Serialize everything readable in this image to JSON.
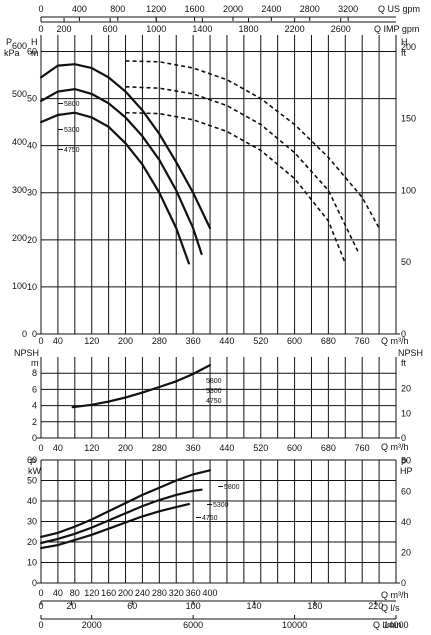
{
  "chart_data": [
    {
      "id": "head",
      "type": "line",
      "left_axis_primary": {
        "title": "P kPa",
        "ticks": [
          0,
          100,
          200,
          300,
          400,
          500,
          600
        ]
      },
      "left_axis_secondary": {
        "title": "H m"
      },
      "right_axis": {
        "title": "H ft",
        "ticks": [
          0,
          50,
          100,
          150,
          200
        ]
      },
      "xlabel": "Q m³/h",
      "xlim": [
        0,
        840
      ],
      "ylim": [
        0,
        63.5
      ],
      "grid": true,
      "series": [
        {
          "name": "5800",
          "style": "solid",
          "x": [
            0,
            40,
            80,
            120,
            160,
            200,
            240,
            280,
            320,
            360,
            400
          ],
          "y": [
            54.5,
            57.0,
            57.3,
            56.5,
            54.5,
            51.5,
            47.5,
            42.5,
            36.5,
            30.0,
            22.5
          ]
        },
        {
          "name": "5300",
          "style": "solid",
          "x": [
            0,
            40,
            80,
            120,
            160,
            200,
            240,
            280,
            320,
            360,
            380
          ],
          "y": [
            49.5,
            51.5,
            52.0,
            51.0,
            49.0,
            46.0,
            42.0,
            37.0,
            30.5,
            22.5,
            17.0
          ]
        },
        {
          "name": "4750",
          "style": "solid",
          "x": [
            0,
            40,
            80,
            120,
            160,
            200,
            240,
            280,
            320,
            350
          ],
          "y": [
            45.0,
            46.5,
            47.0,
            46.0,
            44.0,
            40.5,
            36.0,
            30.0,
            22.5,
            15.0
          ]
        },
        {
          "name": "5800",
          "style": "dashed",
          "x": [
            200,
            280,
            360,
            440,
            520,
            600,
            680,
            760,
            800
          ],
          "y": [
            58.0,
            57.8,
            56.5,
            54.0,
            50.0,
            44.5,
            37.5,
            29.0,
            22.5
          ]
        },
        {
          "name": "5300",
          "style": "dashed",
          "x": [
            200,
            280,
            360,
            440,
            520,
            600,
            680,
            750
          ],
          "y": [
            52.5,
            52.2,
            51.0,
            48.5,
            44.5,
            38.5,
            30.5,
            17.5
          ]
        },
        {
          "name": "4750",
          "style": "dashed",
          "x": [
            200,
            280,
            360,
            440,
            520,
            600,
            680,
            720
          ],
          "y": [
            47.0,
            46.8,
            45.5,
            43.0,
            39.0,
            33.0,
            24.0,
            15.0
          ]
        }
      ]
    },
    {
      "id": "npsh",
      "type": "line",
      "left_axis": {
        "title": "NPSH m",
        "ticks": [
          0,
          2,
          4,
          6,
          8
        ]
      },
      "right_axis": {
        "title": "NPSH ft",
        "ticks": [
          0,
          10,
          20
        ]
      },
      "xlabel": "Q m³/h",
      "xlim": [
        0,
        840
      ],
      "ylim": [
        0,
        10
      ],
      "grid": true,
      "labels": [
        "5800",
        "5300",
        "4750"
      ],
      "series": [
        {
          "name": "5800 / 5300 / 4750",
          "x": [
            75,
            120,
            160,
            200,
            240,
            280,
            320,
            360,
            400
          ],
          "y": [
            3.8,
            4.1,
            4.5,
            5.0,
            5.6,
            6.3,
            7.0,
            7.9,
            9.0
          ]
        }
      ]
    },
    {
      "id": "power",
      "type": "line",
      "left_axis": {
        "title": "P kW",
        "ticks": [
          0,
          10,
          20,
          30,
          40,
          50,
          60
        ]
      },
      "right_axis": {
        "title": "P HP",
        "ticks": [
          0,
          20,
          40,
          60,
          80
        ]
      },
      "xlabel": "Q m³/h",
      "xlim": [
        0,
        840
      ],
      "ylim": [
        0,
        60
      ],
      "grid": true,
      "series": [
        {
          "name": "5800",
          "x": [
            0,
            40,
            80,
            120,
            160,
            200,
            240,
            280,
            320,
            360,
            400
          ],
          "y": [
            22.5,
            24.5,
            27.5,
            31.0,
            35.0,
            39.0,
            43.0,
            46.5,
            50.0,
            53.0,
            55.0
          ]
        },
        {
          "name": "5300",
          "x": [
            0,
            40,
            80,
            120,
            160,
            200,
            240,
            280,
            320,
            360,
            380
          ],
          "y": [
            19.5,
            21.5,
            24.0,
            27.0,
            30.5,
            34.0,
            37.5,
            40.5,
            43.0,
            45.0,
            45.5
          ]
        },
        {
          "name": "4750",
          "x": [
            0,
            40,
            80,
            120,
            160,
            200,
            240,
            280,
            320,
            350
          ],
          "y": [
            17.0,
            18.5,
            21.0,
            23.5,
            26.5,
            29.5,
            32.5,
            35.0,
            37.0,
            38.5
          ]
        }
      ]
    }
  ],
  "x_axes": {
    "m3h": {
      "title": "Q m³/h",
      "ticks": [
        0,
        40,
        120,
        200,
        280,
        360,
        440,
        520,
        600,
        680,
        760
      ]
    },
    "us_gpm": {
      "title": "Q US gpm",
      "ticks": [
        0,
        400,
        800,
        1200,
        1600,
        2000,
        2400,
        2800,
        3200
      ]
    },
    "imp_gpm": {
      "title": "Q IMP gpm",
      "ticks": [
        0,
        200,
        600,
        1000,
        1400,
        1800,
        2200,
        2600
      ]
    },
    "l_s": {
      "title": "Q l/s",
      "ticks": [
        0,
        20,
        60,
        100,
        140,
        180,
        220
      ]
    },
    "l_min": {
      "title": "Q l/min",
      "ticks": [
        0,
        2000,
        6000,
        10000,
        14000
      ]
    },
    "bottom_m3h_ticks": [
      0,
      40,
      80,
      120,
      160,
      200,
      240,
      280,
      320,
      360,
      400
    ]
  },
  "head_m_ticks": [
    0,
    10,
    20,
    30,
    40,
    50,
    60
  ],
  "text": {
    "us_gpm": "Q US gpm",
    "imp_gpm": "Q IMP gpm",
    "p": "P",
    "kpa": "kPa",
    "h": "H",
    "m": "m",
    "ft": "ft",
    "npsh": "NPSH",
    "kw": "kW",
    "hp": "HP",
    "q_m3h": "Q m³/h",
    "q_ls": "Q l/s",
    "q_lmin": "Q l/min",
    "five_eight": "5800",
    "five_three": "5300",
    "four_seven": "4750"
  }
}
